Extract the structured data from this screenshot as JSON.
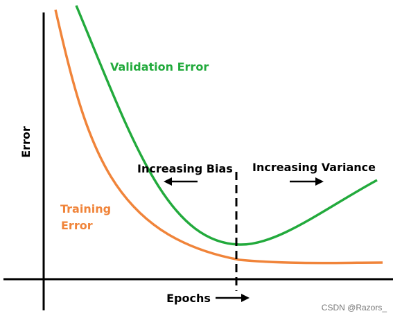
{
  "labels": {
    "y_axis": "Error",
    "x_axis": "Epochs",
    "validation": "Validation Error",
    "training_line1": "Training",
    "training_line2": "Error",
    "bias": "Increasing Bias",
    "variance": "Increasing Variance"
  },
  "watermark": "CSDN @Razors_",
  "colors": {
    "training": "#f0843a",
    "validation": "#22aa3c",
    "axis": "#000000"
  }
}
